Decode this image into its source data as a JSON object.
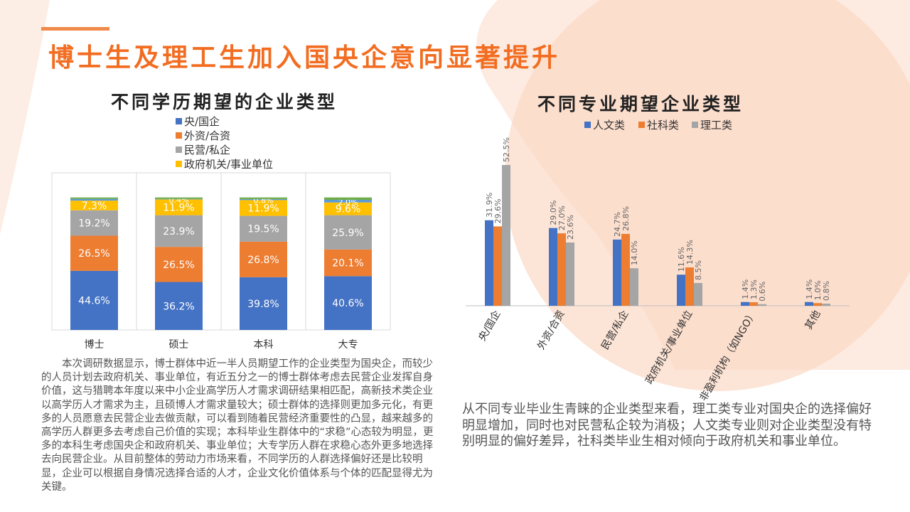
{
  "title": "博士生及理工生加入国央企意向显著提升",
  "colors": {
    "accent": "#f26d21",
    "blue": "#4472c4",
    "orange": "#ed7d31",
    "gray": "#a5a5a5",
    "yellow": "#ffc000",
    "teal": "#5b9bd5",
    "green": "#70ad47"
  },
  "chart_data": [
    {
      "type": "bar",
      "stacked": true,
      "title": "不同学历期望的企业类型",
      "categories": [
        "博士",
        "硕士",
        "本科",
        "大专"
      ],
      "legend_position": "top",
      "grid": "vertical",
      "series": [
        {
          "name": "央/国企",
          "color": "#4472c4",
          "values": [
            44.6,
            36.2,
            39.8,
            40.6
          ],
          "labels": [
            "44.6%",
            "36.2%",
            "39.8%",
            "40.6%"
          ]
        },
        {
          "name": "外资/合资",
          "color": "#ed7d31",
          "values": [
            26.5,
            26.5,
            26.8,
            20.1
          ],
          "labels": [
            "26.5%",
            "26.5%",
            "26.8%",
            "20.1%"
          ]
        },
        {
          "name": "民营/私企",
          "color": "#a5a5a5",
          "values": [
            19.2,
            23.9,
            19.5,
            25.9
          ],
          "labels": [
            "19.2%",
            "23.9%",
            "19.5%",
            "25.9%"
          ]
        },
        {
          "name": "政府机关/事业单位",
          "color": "#ffc000",
          "values": [
            7.3,
            11.9,
            11.9,
            9.6
          ],
          "labels": [
            "7.3%",
            "11.9%",
            "11.9%",
            "9.6%"
          ]
        },
        {
          "name": "",
          "color": "#5b9bd5",
          "values": [
            1.3,
            0.4,
            0.8,
            2.0
          ],
          "labels": [
            "",
            "0.4%",
            "0.8%",
            "2.0%"
          ]
        },
        {
          "name": "",
          "color": "#70ad47",
          "values": [
            1.1,
            1.1,
            1.2,
            1.8
          ],
          "labels": [
            "",
            "",
            "",
            ""
          ]
        }
      ]
    },
    {
      "type": "bar",
      "title": "不同专业期望企业类型",
      "categories": [
        "央/国企",
        "外资/合资",
        "民营/私企",
        "政府机关/事业单位",
        "非盈利机构（如NGO）",
        "其他"
      ],
      "legend_position": "top",
      "series": [
        {
          "name": "人文类",
          "color": "#4472c4",
          "values": [
            31.9,
            29.0,
            24.7,
            11.6,
            1.4,
            1.4
          ],
          "labels": [
            "31.9%",
            "29.0%",
            "24.7%",
            "11.6%",
            "1.4%",
            "1.4%"
          ]
        },
        {
          "name": "社科类",
          "color": "#ed7d31",
          "values": [
            29.6,
            27.0,
            26.8,
            14.3,
            1.3,
            1.0
          ],
          "labels": [
            "29.6%",
            "27.0%",
            "26.8%",
            "14.3%",
            "1.3%",
            "1.0%"
          ]
        },
        {
          "name": "理工类",
          "color": "#a5a5a5",
          "values": [
            52.5,
            23.6,
            14.0,
            8.5,
            0.6,
            0.8
          ],
          "labels": [
            "52.5%",
            "23.6%",
            "14.0%",
            "8.5%",
            "0.6%",
            "0.8%"
          ]
        }
      ]
    }
  ],
  "paragraphs": {
    "left": "本次调研数据显示，博士群体中近一半人员期望工作的企业类型为国央企，而较少的人员计划去政府机关、事业单位，有近五分之一的博士群体考虑去民营企业发挥自身价值，这与猎聘本年度以来中小企业高学历人才需求调研结果相匹配，高新技术类企业以高学历人才需求为主，且硕博人才需求量较大；硕士群体的选择则更加多元化，有更多的人员愿意去民营企业去做贡献，可以看到随着民营经济重要性的凸显，越来越多的高学历人群更多去考虑自己价值的实现；本科毕业生群体中的“求稳”心态较为明显，更多的本科生考虑国央企和政府机关、事业单位；大专学历人群在求稳心态外更多地选择去向民营企业。从目前整体的劳动力市场来看，不同学历的人群选择偏好还是比较明显，企业可以根据自身情况选择合适的人才，企业文化价值体系与个体的匹配显得尤为关键。",
    "right": "从不同专业毕业生青睐的企业类型来看，理工类专业对国央企的选择偏好明显增加，同时也对民营私企较为消极；人文类专业则对企业类型没有特别明显的偏好差异，社科类毕业生相对倾向于政府机关和事业单位。"
  }
}
